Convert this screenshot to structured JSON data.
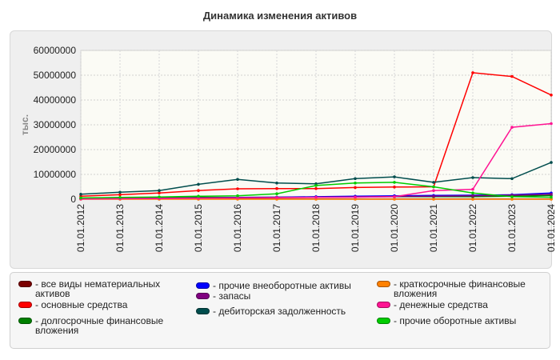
{
  "chart_data": {
    "type": "line",
    "title": "Динамика изменения активов",
    "ylabel": "тыс.",
    "xlabel": "",
    "ylim": [
      0,
      60000000
    ],
    "yticks": [
      "0",
      "10000000",
      "20000000",
      "30000000",
      "40000000",
      "50000000",
      "60000000"
    ],
    "categories": [
      "01.01.2012",
      "01.01.2013",
      "01.01.2014",
      "01.01.2015",
      "01.01.2016",
      "01.01.2017",
      "01.01.2018",
      "01.01.2019",
      "01.01.2020",
      "01.01.2021",
      "01.01.2022",
      "01.01.2023",
      "01.01.2024"
    ],
    "legend_position": "bottom",
    "series": [
      {
        "name": "- все виды нематериальных активов",
        "color": "#7a0000",
        "values": [
          50000,
          50000,
          50000,
          50000,
          50000,
          50000,
          50000,
          50000,
          50000,
          50000,
          50000,
          50000,
          50000
        ]
      },
      {
        "name": "- основные средства",
        "color": "#ff0000",
        "values": [
          1200000,
          1800000,
          2500000,
          3500000,
          4200000,
          4300000,
          4300000,
          4700000,
          4900000,
          5000000,
          51000000,
          49500000,
          42000000
        ]
      },
      {
        "name": "- долгосрочные финансовые вложения",
        "color": "#008000",
        "values": [
          400000,
          500000,
          600000,
          700000,
          700000,
          800000,
          900000,
          900000,
          1000000,
          1000000,
          1000000,
          1200000,
          1500000
        ]
      },
      {
        "name": "- прочие внеоборотные активы",
        "color": "#0000ff",
        "values": [
          100000,
          200000,
          300000,
          500000,
          700000,
          800000,
          1000000,
          1200000,
          1400000,
          1500000,
          1600000,
          1800000,
          2500000
        ]
      },
      {
        "name": "- запасы",
        "color": "#800080",
        "values": [
          200000,
          300000,
          400000,
          500000,
          600000,
          700000,
          800000,
          900000,
          1100000,
          1200000,
          1400000,
          1600000,
          2000000
        ]
      },
      {
        "name": "- дебиторская задолженность",
        "color": "#004d4d",
        "values": [
          2000000,
          2800000,
          3500000,
          6000000,
          8000000,
          6500000,
          6200000,
          8300000,
          9000000,
          6800000,
          8700000,
          8300000,
          14800000
        ]
      },
      {
        "name": "- краткосрочные финансовые вложения",
        "color": "#ff8000",
        "values": [
          0,
          0,
          0,
          0,
          0,
          0,
          0,
          0,
          0,
          0,
          0,
          0,
          0
        ]
      },
      {
        "name": "- денежные средства",
        "color": "#ff1493",
        "values": [
          100000,
          200000,
          300000,
          400000,
          500000,
          600000,
          700000,
          800000,
          1000000,
          3500000,
          4000000,
          29000000,
          30500000
        ]
      },
      {
        "name": "- прочие оборотные активы",
        "color": "#00cc00",
        "values": [
          500000,
          700000,
          900000,
          1200000,
          1400000,
          2200000,
          5500000,
          6500000,
          6800000,
          5000000,
          2500000,
          1000000,
          800000
        ]
      }
    ]
  }
}
